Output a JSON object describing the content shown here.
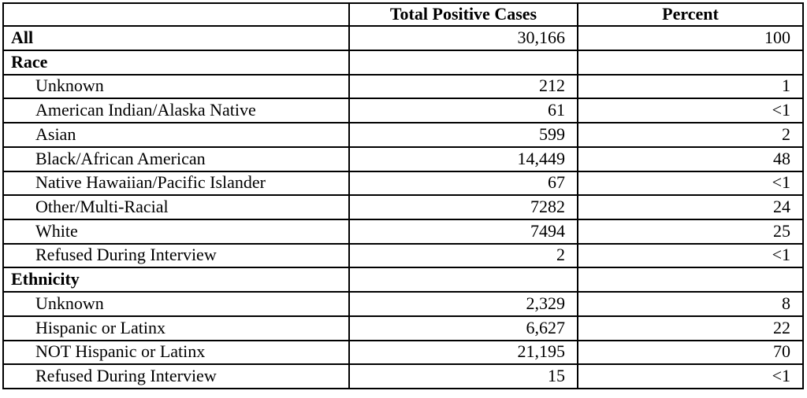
{
  "table": {
    "header": {
      "col1": "",
      "col2": "Total Positive Cases",
      "col3": "Percent"
    },
    "rows": [
      {
        "label": "All",
        "bold": true,
        "indent": false,
        "cases": "30,166",
        "percent": "100"
      },
      {
        "label": "Race",
        "bold": true,
        "indent": false,
        "cases": "",
        "percent": ""
      },
      {
        "label": "Unknown",
        "bold": false,
        "indent": true,
        "cases": "212",
        "percent": "1"
      },
      {
        "label": "American Indian/Alaska Native",
        "bold": false,
        "indent": true,
        "cases": "61",
        "percent": "<1"
      },
      {
        "label": "Asian",
        "bold": false,
        "indent": true,
        "cases": "599",
        "percent": "2"
      },
      {
        "label": "Black/African American",
        "bold": false,
        "indent": true,
        "cases": "14,449",
        "percent": "48"
      },
      {
        "label": "Native Hawaiian/Pacific Islander",
        "bold": false,
        "indent": true,
        "cases": "67",
        "percent": "<1"
      },
      {
        "label": "Other/Multi-Racial",
        "bold": false,
        "indent": true,
        "cases": "7282",
        "percent": "24"
      },
      {
        "label": "White",
        "bold": false,
        "indent": true,
        "cases": "7494",
        "percent": "25"
      },
      {
        "label": "Refused During Interview",
        "bold": false,
        "indent": true,
        "cases": "2",
        "percent": "<1"
      },
      {
        "label": "Ethnicity",
        "bold": true,
        "indent": false,
        "cases": "",
        "percent": ""
      },
      {
        "label": "Unknown",
        "bold": false,
        "indent": true,
        "cases": "2,329",
        "percent": "8"
      },
      {
        "label": "Hispanic or Latinx",
        "bold": false,
        "indent": true,
        "cases": "6,627",
        "percent": "22"
      },
      {
        "label": "NOT Hispanic or Latinx",
        "bold": false,
        "indent": true,
        "cases": "21,195",
        "percent": "70"
      },
      {
        "label": "Refused During Interview",
        "bold": false,
        "indent": true,
        "cases": "15",
        "percent": "<1"
      }
    ],
    "colors": {
      "border": "#000000",
      "text": "#000000",
      "background": "#ffffff"
    }
  },
  "chart_data": {
    "type": "table",
    "title": "",
    "columns": [
      "",
      "Total Positive Cases",
      "Percent"
    ],
    "rows": [
      [
        "All",
        "30,166",
        "100"
      ],
      [
        "Race",
        "",
        ""
      ],
      [
        "Unknown",
        "212",
        "1"
      ],
      [
        "American Indian/Alaska Native",
        "61",
        "<1"
      ],
      [
        "Asian",
        "599",
        "2"
      ],
      [
        "Black/African American",
        "14,449",
        "48"
      ],
      [
        "Native Hawaiian/Pacific Islander",
        "67",
        "<1"
      ],
      [
        "Other/Multi-Racial",
        "7282",
        "24"
      ],
      [
        "White",
        "7494",
        "25"
      ],
      [
        "Refused During Interview",
        "2",
        "<1"
      ],
      [
        "Ethnicity",
        "",
        ""
      ],
      [
        "Unknown",
        "2,329",
        "8"
      ],
      [
        "Hispanic or Latinx",
        "6,627",
        "22"
      ],
      [
        "NOT Hispanic or Latinx",
        "21,195",
        "70"
      ],
      [
        "Refused During Interview",
        "15",
        "<1"
      ]
    ]
  }
}
